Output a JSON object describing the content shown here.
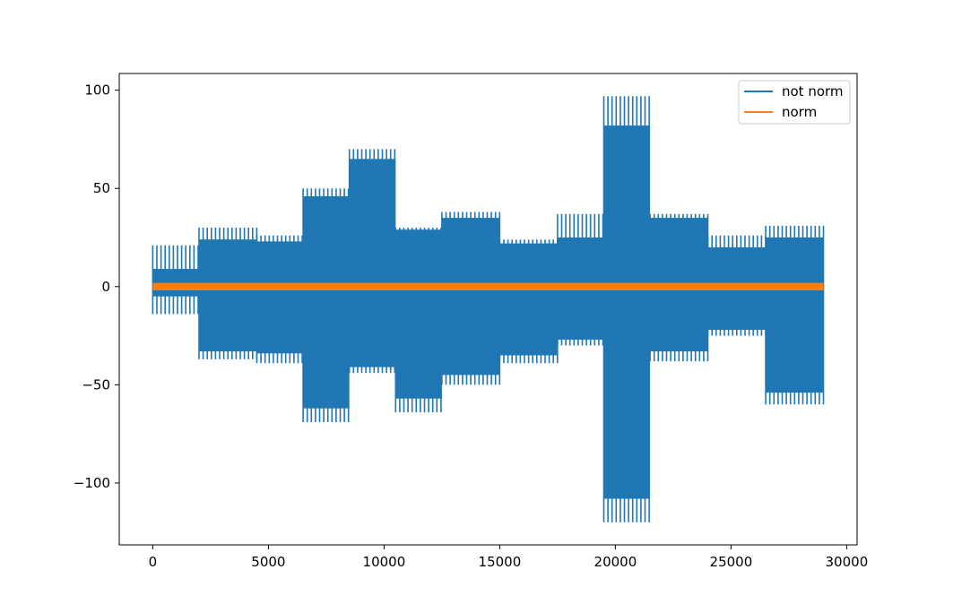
{
  "chart_data": {
    "type": "line",
    "title": "",
    "xlabel": "",
    "ylabel": "",
    "xlim": [
      -1450,
      30450
    ],
    "ylim": [
      -131.5,
      108.5
    ],
    "xticks": [
      0,
      5000,
      10000,
      15000,
      20000,
      25000,
      30000
    ],
    "xtick_labels": [
      "0",
      "5000",
      "10000",
      "15000",
      "20000",
      "25000",
      "30000"
    ],
    "yticks": [
      -100,
      -50,
      0,
      50,
      100
    ],
    "ytick_labels": [
      "−100",
      "−50",
      "0",
      "50",
      "100"
    ],
    "grid": false,
    "legend_position": "top-right",
    "legend": [
      "not norm",
      "norm"
    ],
    "series": [
      {
        "name": "not norm",
        "color": "#1f77b4",
        "segments": [
          {
            "x_start": 0,
            "x_end": 2000,
            "band_top": 9,
            "band_bottom": -5,
            "spike_max": 21,
            "spike_min": -14
          },
          {
            "x_start": 2000,
            "x_end": 4500,
            "band_top": 24,
            "band_bottom": -33,
            "spike_max": 30,
            "spike_min": -37
          },
          {
            "x_start": 4500,
            "x_end": 6500,
            "band_top": 23,
            "band_bottom": -34,
            "spike_max": 26,
            "spike_min": -39
          },
          {
            "x_start": 6500,
            "x_end": 8500,
            "band_top": 46,
            "band_bottom": -62,
            "spike_max": 50,
            "spike_min": -69
          },
          {
            "x_start": 8500,
            "x_end": 10500,
            "band_top": 65,
            "band_bottom": -41,
            "spike_max": 70,
            "spike_min": -44
          },
          {
            "x_start": 10500,
            "x_end": 12500,
            "band_top": 29,
            "band_bottom": -57,
            "spike_max": 30,
            "spike_min": -64
          },
          {
            "x_start": 12500,
            "x_end": 15000,
            "band_top": 35,
            "band_bottom": -45,
            "spike_max": 38,
            "spike_min": -50
          },
          {
            "x_start": 15000,
            "x_end": 17500,
            "band_top": 22,
            "band_bottom": -35,
            "spike_max": 24,
            "spike_min": -39
          },
          {
            "x_start": 17500,
            "x_end": 19500,
            "band_top": 25,
            "band_bottom": -27,
            "spike_max": 37,
            "spike_min": -30
          },
          {
            "x_start": 19500,
            "x_end": 21500,
            "band_top": 82,
            "band_bottom": -108,
            "spike_max": 97,
            "spike_min": -120
          },
          {
            "x_start": 21500,
            "x_end": 24000,
            "band_top": 35,
            "band_bottom": -33,
            "spike_max": 37,
            "spike_min": -38
          },
          {
            "x_start": 24000,
            "x_end": 26500,
            "band_top": 20,
            "band_bottom": -22,
            "spike_max": 26,
            "spike_min": -25
          },
          {
            "x_start": 26500,
            "x_end": 29000,
            "band_top": 25,
            "band_bottom": -54,
            "spike_max": 31,
            "spike_min": -60
          }
        ]
      },
      {
        "name": "norm",
        "color": "#ff7f0e",
        "x_start": 0,
        "x_end": 29000,
        "band_top": 1,
        "band_bottom": -1
      }
    ]
  }
}
